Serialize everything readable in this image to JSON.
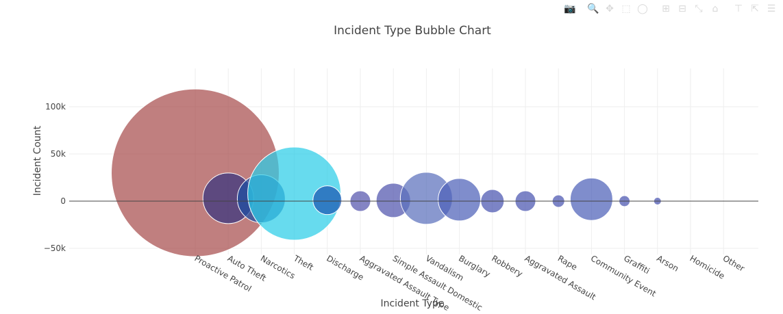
{
  "chart_data": {
    "type": "scatter",
    "title": "Incident Type Bubble Chart",
    "xlabel": "Incident Type",
    "ylabel": "Incident Count",
    "categories": [
      "Proactive Patrol",
      "Auto Theft",
      "Narcotics",
      "Theft",
      "Discharge",
      "Aggravated Assault Type",
      "Simple Assault Domestic",
      "Vandalism",
      "Burglary",
      "Robbery",
      "Aggravated Assault",
      "Rape",
      "Community Event",
      "Graffiti",
      "Arson",
      "Homicide",
      "Other"
    ],
    "y_values": [
      30000,
      3000,
      2500,
      8000,
      1000,
      0,
      800,
      3000,
      1500,
      0,
      0,
      0,
      2000,
      0,
      0,
      0,
      0
    ],
    "bubble_diameters": [
      245,
      74,
      70,
      136,
      42,
      30,
      50,
      76,
      62,
      34,
      30,
      18,
      62,
      16,
      11,
      0,
      0
    ],
    "bubble_colors": [
      "#a84d4e",
      "#36357f",
      "#1d4fa3",
      "#2dcde8",
      "#1c58b3",
      "#5454ad",
      "#5155ad",
      "#5c70bd",
      "#4e61b8",
      "#4a54b0",
      "#4a54b0",
      "#4a54b0",
      "#4e61b8",
      "#4a54b0",
      "#4a54b0",
      "#4a54b0",
      "#4a54b0"
    ],
    "yticks": [
      -50000,
      0,
      50000,
      100000
    ],
    "ytick_labels": [
      "−50k",
      "0",
      "50k",
      "100k"
    ],
    "ylim": [
      -55000,
      100000
    ],
    "grid": true
  },
  "modebar": {
    "icons": [
      "camera-icon",
      "zoom-icon",
      "pan-icon",
      "box-select-icon",
      "lasso-icon",
      "zoom-in-icon",
      "zoom-out-icon",
      "autoscale-icon",
      "reset-axes-icon",
      "spike-lines-icon",
      "hover-closest-icon",
      "hover-compare-icon"
    ],
    "glyphs": [
      "📷",
      "🔍",
      "✥",
      "⬚",
      "◯",
      "⊞",
      "⊟",
      "⤡",
      "⌂",
      "⊤",
      "⇱",
      "☰"
    ]
  }
}
